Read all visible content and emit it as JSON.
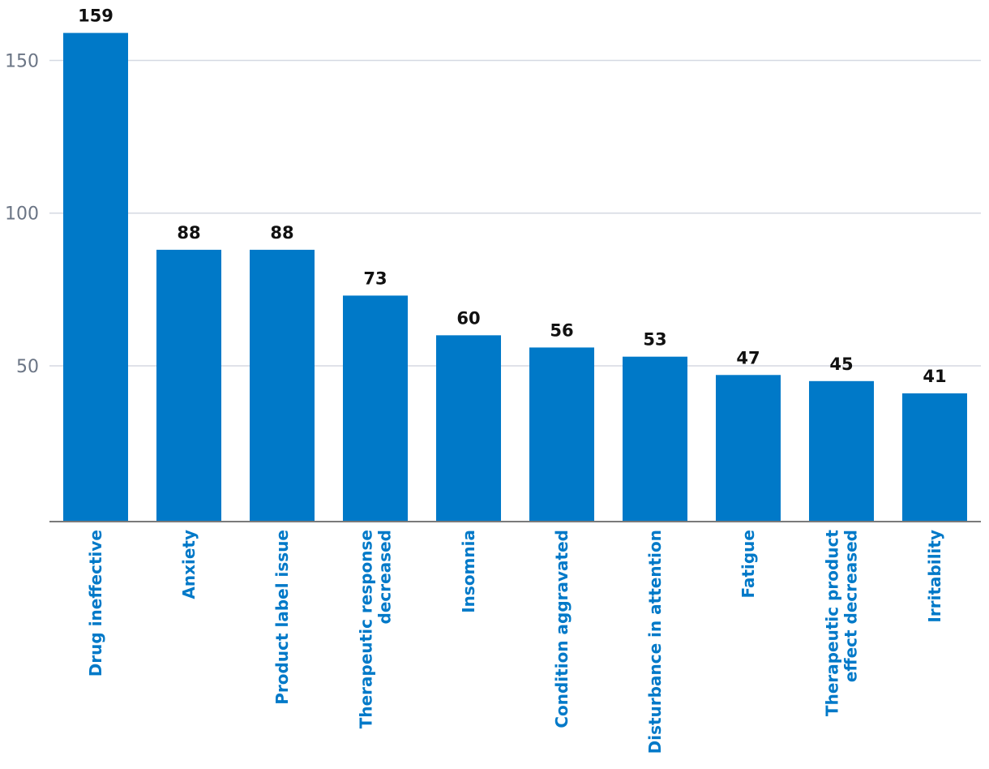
{
  "chart_data": {
    "type": "bar",
    "categories": [
      "Drug ineffective",
      "Anxiety",
      "Product label issue",
      "Therapeutic response decreased",
      "Insomnia",
      "Condition aggravated",
      "Disturbance in attention",
      "Fatigue",
      "Therapeutic product effect decreased",
      "Irritability"
    ],
    "category_lines": [
      [
        "Drug ineffective"
      ],
      [
        "Anxiety"
      ],
      [
        "Product label issue"
      ],
      [
        "Therapeutic response",
        "decreased"
      ],
      [
        "Insomnia"
      ],
      [
        "Condition aggravated"
      ],
      [
        "Disturbance in attention"
      ],
      [
        "Fatigue"
      ],
      [
        "Therapeutic product",
        "effect decreased"
      ],
      [
        "Irritability"
      ]
    ],
    "values": [
      159,
      88,
      88,
      73,
      60,
      56,
      53,
      47,
      45,
      41
    ],
    "data_labels": [
      "159",
      "88",
      "88",
      "73",
      "60",
      "56",
      "53",
      "47",
      "45",
      "41"
    ],
    "title": "",
    "xlabel": "",
    "ylabel": "",
    "ylim": [
      -1,
      170
    ],
    "yticks": [
      50,
      100,
      150
    ],
    "ytick_labels": [
      "50",
      "100",
      "150"
    ],
    "grid": true,
    "legend": "none",
    "colors": {
      "bar": "#0079c8",
      "category_label": "#0079c8",
      "value_label": "#111111",
      "tick_label": "#6b7585",
      "grid": "#d5d9e2",
      "axis": "#7a7a7a"
    }
  }
}
